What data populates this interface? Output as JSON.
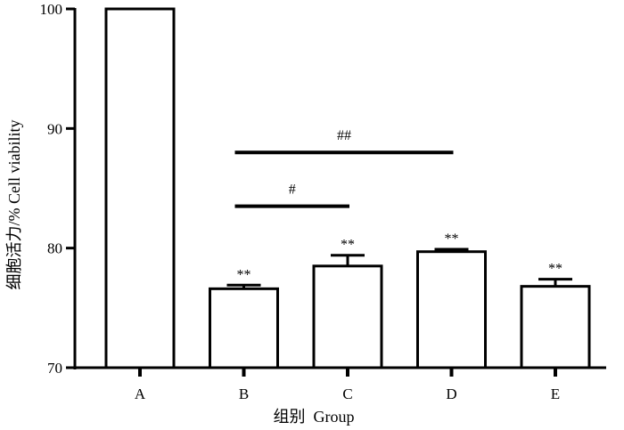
{
  "chart_data": {
    "type": "bar",
    "categories": [
      "A",
      "B",
      "C",
      "D",
      "E"
    ],
    "values": [
      100,
      76.6,
      78.5,
      79.7,
      76.8
    ],
    "errors": [
      0,
      0.3,
      0.9,
      0.2,
      0.6
    ],
    "bar_labels": [
      "",
      "**",
      "**",
      "**",
      "**"
    ],
    "xlabel": "组别  Group",
    "ylabel": "细胞活力/%   Cell viability",
    "ylim": [
      70,
      100
    ],
    "yticks": [
      70,
      80,
      90,
      100
    ],
    "grid": false,
    "bar_fill": "#ffffff",
    "bar_stroke": "#000000",
    "significance": [
      {
        "from": "B",
        "to": "D",
        "y": 88,
        "label": "##"
      },
      {
        "from": "B",
        "to": "C",
        "y": 83.5,
        "label": "#"
      }
    ]
  }
}
